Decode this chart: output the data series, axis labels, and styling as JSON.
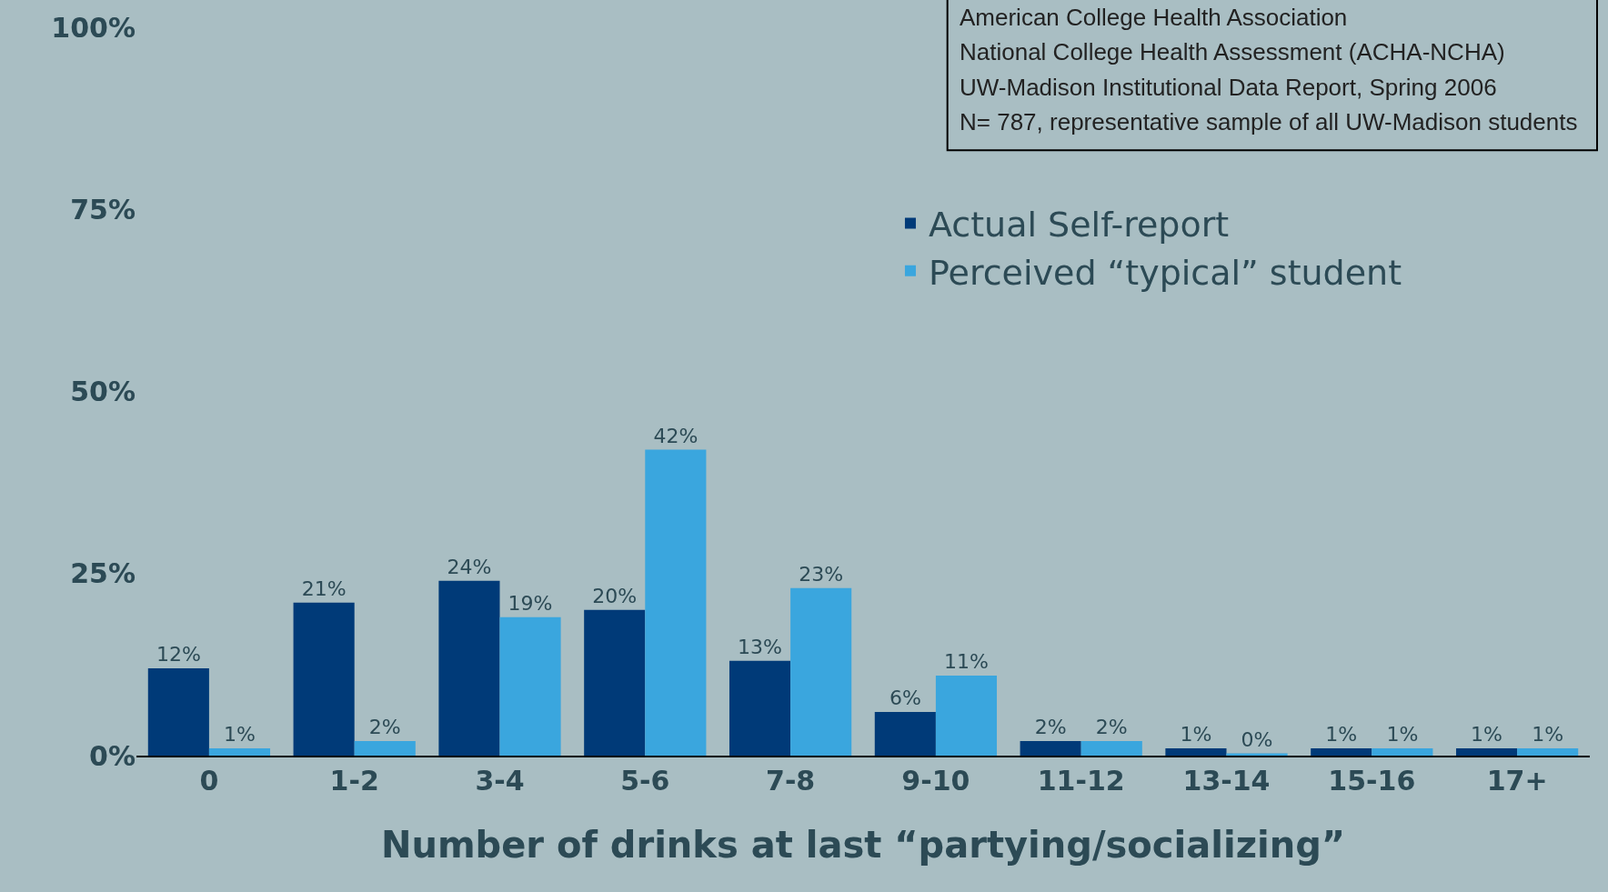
{
  "chart_data": {
    "type": "bar",
    "xlabel": "Number of drinks at last “partying/socializing”",
    "categories": [
      "0",
      "1-2",
      "3-4",
      "5-6",
      "7-8",
      "9-10",
      "11-12",
      "13-14",
      "15-16",
      "17+"
    ],
    "series": [
      {
        "name": "Actual Self-report",
        "color": "#003a78",
        "values": [
          12,
          21,
          24,
          20,
          13,
          6,
          2,
          1,
          1,
          1
        ],
        "value_labels": [
          "12%",
          "21%",
          "24%",
          "20%",
          "13%",
          "6%",
          "2%",
          "1%",
          "1%",
          "1%"
        ]
      },
      {
        "name": "Perceived “typical” student",
        "color": "#3aa6de",
        "values": [
          1,
          2,
          19,
          42,
          23,
          11,
          2,
          0.3,
          1,
          1
        ],
        "value_labels": [
          "1%",
          "2%",
          "19%",
          "42%",
          "23%",
          "11%",
          "2%",
          "0%",
          "1%",
          "1%"
        ]
      }
    ],
    "ylim": [
      0,
      100
    ],
    "yticks": [
      {
        "value": 0,
        "label": "0%"
      },
      {
        "value": 25,
        "label": "25%"
      },
      {
        "value": 50,
        "label": "50%"
      },
      {
        "value": 75,
        "label": "75%"
      },
      {
        "value": 100,
        "label": "100%"
      }
    ],
    "grid": false,
    "legend": "top right",
    "annotations": [
      "American College Health Association",
      "National College Health Assessment (ACHA-NCHA)",
      "UW-Madison Institutional Data Report, Spring 2006",
      "N= 787, representative sample of all UW-Madison students"
    ]
  }
}
